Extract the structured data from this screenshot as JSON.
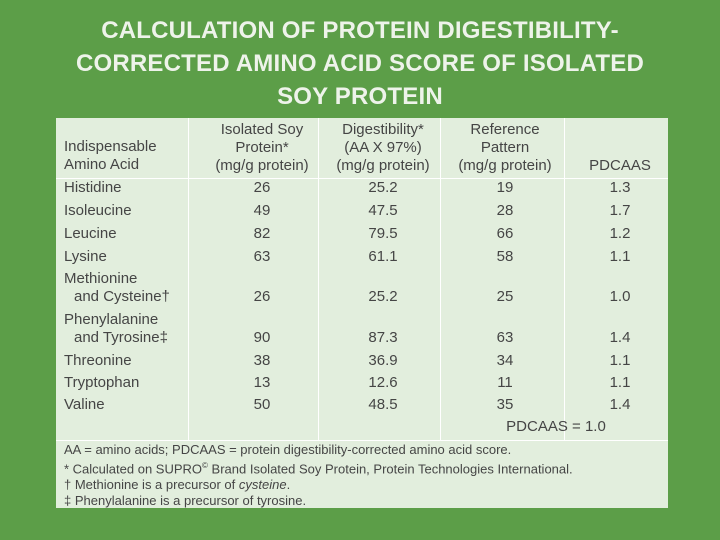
{
  "title": {
    "line1": "CALCULATION OF PROTEIN DIGESTIBILITY-",
    "line2": "CORRECTED AMINO ACID SCORE OF ISOLATED",
    "line3": "SOY PROTEIN"
  },
  "headers": {
    "col1": [
      "Indispensable",
      "Amino Acid"
    ],
    "col2": [
      "Isolated Soy",
      "Protein*",
      "(mg/g protein)"
    ],
    "col3": [
      "Digestibility*",
      "(AA X 97%)",
      "(mg/g protein)"
    ],
    "col4": [
      "Reference",
      "Pattern",
      "(mg/g protein)"
    ],
    "col5": [
      "PDCAAS"
    ]
  },
  "rows": [
    {
      "name": [
        "Histidine"
      ],
      "soy": "26",
      "digest": "25.2",
      "ref": "19",
      "pdcaas": "1.3"
    },
    {
      "name": [
        "Isoleucine"
      ],
      "soy": "49",
      "digest": "47.5",
      "ref": "28",
      "pdcaas": "1.7"
    },
    {
      "name": [
        "Leucine"
      ],
      "soy": "82",
      "digest": "79.5",
      "ref": "66",
      "pdcaas": "1.2"
    },
    {
      "name": [
        "Lysine"
      ],
      "soy": "63",
      "digest": "61.1",
      "ref": "58",
      "pdcaas": "1.1"
    },
    {
      "name": [
        "Methionine",
        "and Cysteine†"
      ],
      "soy": "26",
      "digest": "25.2",
      "ref": "25",
      "pdcaas": "1.0"
    },
    {
      "name": [
        "Phenylalanine",
        "and Tyrosine‡"
      ],
      "soy": "90",
      "digest": "87.3",
      "ref": "63",
      "pdcaas": "1.4"
    },
    {
      "name": [
        "Threonine"
      ],
      "soy": "38",
      "digest": "36.9",
      "ref": "34",
      "pdcaas": "1.1"
    },
    {
      "name": [
        "Tryptophan"
      ],
      "soy": "13",
      "digest": "12.6",
      "ref": "11",
      "pdcaas": "1.1"
    },
    {
      "name": [
        "Valine"
      ],
      "soy": "50",
      "digest": "48.5",
      "ref": "35",
      "pdcaas": "1.4"
    }
  ],
  "total": "PDCAAS = 1.0",
  "footnotes": {
    "abbrev": "AA = amino acids; PDCAAS = protein digestibility-corrected amino acid score.",
    "star_pre": "* Calculated on SUPRO",
    "star_sup": "©",
    "star_post": " Brand Isolated Soy Protein, Protein Technologies International.",
    "dagger_pre": "† Methionine is a precursor of ",
    "dagger_em": "cysteine",
    "dagger_post": ".",
    "ddagger": "‡ Phenylalanine is a precursor of tyrosine."
  }
}
